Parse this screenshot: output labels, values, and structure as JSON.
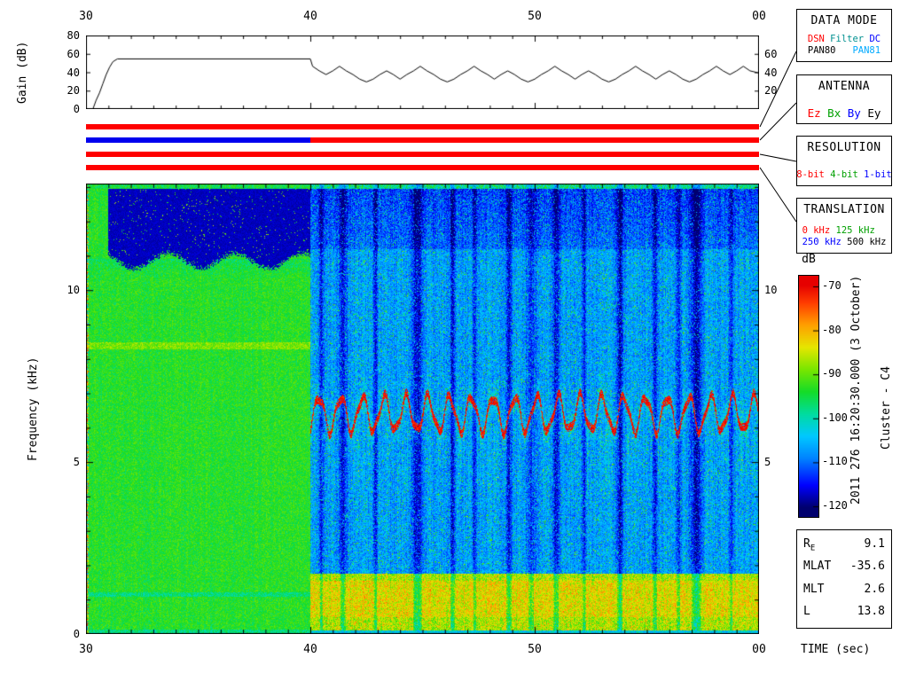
{
  "time_axis": {
    "label": "TIME (sec)",
    "tick_labels": [
      "30",
      "40",
      "50",
      "00"
    ],
    "tick_values": [
      30,
      40,
      50,
      60
    ]
  },
  "gain_panel": {
    "ylabel": "Gain (dB)",
    "left_tick_labels": [
      "80",
      "60",
      "40",
      "20",
      "0"
    ],
    "left_tick_values": [
      80,
      60,
      40,
      20,
      0
    ],
    "right_tick_labels": [
      "60",
      "40",
      "20"
    ],
    "right_tick_values": [
      60,
      40,
      20
    ],
    "ylim": [
      0,
      80
    ]
  },
  "status_bars": [
    {
      "name": "data-mode",
      "segments": [
        {
          "from": 30,
          "to": 60,
          "color": "#ff0000"
        }
      ]
    },
    {
      "name": "antenna",
      "segments": [
        {
          "from": 30,
          "to": 40,
          "color": "#0000ee"
        },
        {
          "from": 40,
          "to": 60,
          "color": "#ff0000"
        }
      ]
    },
    {
      "name": "resolution",
      "segments": [
        {
          "from": 30,
          "to": 60,
          "color": "#ff0000"
        }
      ]
    },
    {
      "name": "translation",
      "segments": [
        {
          "from": 30,
          "to": 60,
          "color": "#ff0000"
        }
      ]
    }
  ],
  "legend_boxes": [
    {
      "title": "DATA MODE",
      "rows": [
        [
          {
            "text": "DSN",
            "color": "#ff0000"
          },
          {
            "text": " Filter",
            "color": "#009090"
          },
          {
            "text": " DC",
            "color": "#0000ff"
          }
        ],
        [
          {
            "text": "PAN80",
            "color": "#000000"
          },
          {
            "text": "   PAN81",
            "color": "#00aaff"
          }
        ]
      ]
    },
    {
      "title": "ANTENNA",
      "rows": [
        [
          {
            "text": "Ez",
            "color": "#ff0000"
          },
          {
            "text": " Bx",
            "color": "#00a000"
          },
          {
            "text": " By",
            "color": "#0000ff"
          },
          {
            "text": " Ey",
            "color": "#000000"
          }
        ]
      ]
    },
    {
      "title": "RESOLUTION",
      "rows": [
        [
          {
            "text": "8-bit",
            "color": "#ff0000"
          },
          {
            "text": " 4-bit",
            "color": "#00a000"
          },
          {
            "text": " 1-bit",
            "color": "#0000ff"
          }
        ]
      ]
    },
    {
      "title": "TRANSLATION",
      "rows": [
        [
          {
            "text": "0 kHz",
            "color": "#ff0000"
          },
          {
            "text": " 125 kHz",
            "color": "#00a000"
          }
        ],
        [
          {
            "text": "250 kHz",
            "color": "#0000ff"
          },
          {
            "text": " 500 kHz",
            "color": "#000000"
          }
        ]
      ]
    }
  ],
  "colorbar": {
    "label": "dB",
    "tick_labels": [
      "-70",
      "-80",
      "-90",
      "-100",
      "-110",
      "-120"
    ],
    "tick_values": [
      -70,
      -80,
      -90,
      -100,
      -110,
      -120
    ]
  },
  "side_text": {
    "timestamp": "2011 276 16:20:30.000 (3 October)",
    "spacecraft": "Cluster - C4"
  },
  "spectrogram": {
    "ylabel": "Frequency (kHz)",
    "left_tick_labels": [
      "10",
      "5",
      "0"
    ],
    "left_tick_values": [
      10,
      5,
      0
    ],
    "right_tick_labels": [
      "10",
      "5"
    ],
    "right_tick_values": [
      10,
      5
    ]
  },
  "info_box": {
    "rows": [
      {
        "label": "R",
        "sub": "E",
        "value": "9.1"
      },
      {
        "label": "MLAT",
        "value": "-35.6"
      },
      {
        "label": "MLT",
        "value": "2.6"
      },
      {
        "label": "L",
        "value": "13.8"
      }
    ]
  },
  "chart_data": [
    {
      "type": "line",
      "ylabel": "Gain (dB)",
      "xlim": [
        30,
        60
      ],
      "ylim": [
        0,
        80
      ],
      "yticks": [
        0,
        20,
        40,
        60,
        80
      ],
      "x_tick_labels": [
        "30",
        "40",
        "50",
        "00"
      ],
      "points": [
        [
          30.0,
          0
        ],
        [
          30.3,
          0
        ],
        [
          30.45,
          10
        ],
        [
          30.6,
          18
        ],
        [
          30.75,
          28
        ],
        [
          30.9,
          38
        ],
        [
          31.05,
          46
        ],
        [
          31.2,
          52
        ],
        [
          31.4,
          55
        ],
        [
          40.0,
          55
        ],
        [
          40.1,
          47
        ],
        [
          40.4,
          42
        ],
        [
          40.7,
          38
        ],
        [
          41.0,
          42
        ],
        [
          41.3,
          47
        ],
        [
          41.6,
          42
        ],
        [
          41.9,
          38
        ],
        [
          42.2,
          33
        ],
        [
          42.5,
          30
        ],
        [
          42.8,
          33
        ],
        [
          43.1,
          38
        ],
        [
          43.4,
          42
        ],
        [
          43.7,
          38
        ],
        [
          44.0,
          33
        ],
        [
          44.3,
          38
        ],
        [
          44.6,
          42
        ],
        [
          44.9,
          47
        ],
        [
          45.2,
          42
        ],
        [
          45.5,
          38
        ],
        [
          45.8,
          33
        ],
        [
          46.1,
          30
        ],
        [
          46.4,
          33
        ],
        [
          46.7,
          38
        ],
        [
          47.0,
          42
        ],
        [
          47.3,
          47
        ],
        [
          47.6,
          42
        ],
        [
          47.9,
          38
        ],
        [
          48.2,
          33
        ],
        [
          48.5,
          38
        ],
        [
          48.8,
          42
        ],
        [
          49.1,
          38
        ],
        [
          49.4,
          33
        ],
        [
          49.7,
          30
        ],
        [
          50.0,
          33
        ],
        [
          50.3,
          38
        ],
        [
          50.6,
          42
        ],
        [
          50.9,
          47
        ],
        [
          51.2,
          42
        ],
        [
          51.5,
          38
        ],
        [
          51.8,
          33
        ],
        [
          52.1,
          38
        ],
        [
          52.4,
          42
        ],
        [
          52.7,
          38
        ],
        [
          53.0,
          33
        ],
        [
          53.3,
          30
        ],
        [
          53.6,
          33
        ],
        [
          53.9,
          38
        ],
        [
          54.2,
          42
        ],
        [
          54.5,
          47
        ],
        [
          54.8,
          42
        ],
        [
          55.1,
          38
        ],
        [
          55.4,
          33
        ],
        [
          55.7,
          38
        ],
        [
          56.0,
          42
        ],
        [
          56.3,
          38
        ],
        [
          56.6,
          33
        ],
        [
          56.9,
          30
        ],
        [
          57.2,
          33
        ],
        [
          57.5,
          38
        ],
        [
          57.8,
          42
        ],
        [
          58.1,
          47
        ],
        [
          58.4,
          42
        ],
        [
          58.7,
          38
        ],
        [
          59.0,
          42
        ],
        [
          59.3,
          47
        ],
        [
          59.6,
          42
        ],
        [
          59.95,
          40
        ]
      ]
    },
    {
      "type": "heatmap",
      "xlabel": "TIME (sec)",
      "ylabel": "Frequency (kHz)",
      "xlim": [
        30,
        60
      ],
      "ylim": [
        0,
        13.1
      ],
      "x_tick_labels": [
        "30",
        "40",
        "50",
        "00"
      ],
      "yticks": [
        0,
        5,
        10
      ],
      "colorbar": {
        "label": "dB",
        "min": -120,
        "max": -70,
        "ticks": [
          -70,
          -80,
          -90,
          -100,
          -110,
          -120
        ]
      },
      "segments": [
        {
          "t_range": [
            30,
            40
          ],
          "background_db": -93.5,
          "noise_db": 7,
          "hf_dropout": {
            "t_start": 31.0,
            "f_range": [
              10.85,
              12.95
            ],
            "db": -118.5
          },
          "line_enhancement": {
            "f": 8.38,
            "db_boost": 4.5
          }
        },
        {
          "t_range": [
            40,
            60
          ],
          "background_db": -107,
          "noise_db": 9,
          "chorus": {
            "f_center": 6.4,
            "f_swing": 0.5,
            "period_s": 0.97,
            "peak_db": -71.5
          },
          "low_band": {
            "f_max": 1.75,
            "db": -87,
            "hot_db": -79
          },
          "dropout_stripes": {
            "approx_count": 20,
            "depth_db": 14
          },
          "hf_darkening": {
            "f_above": 11.2,
            "db_per_khz": 1.5
          }
        }
      ]
    }
  ]
}
